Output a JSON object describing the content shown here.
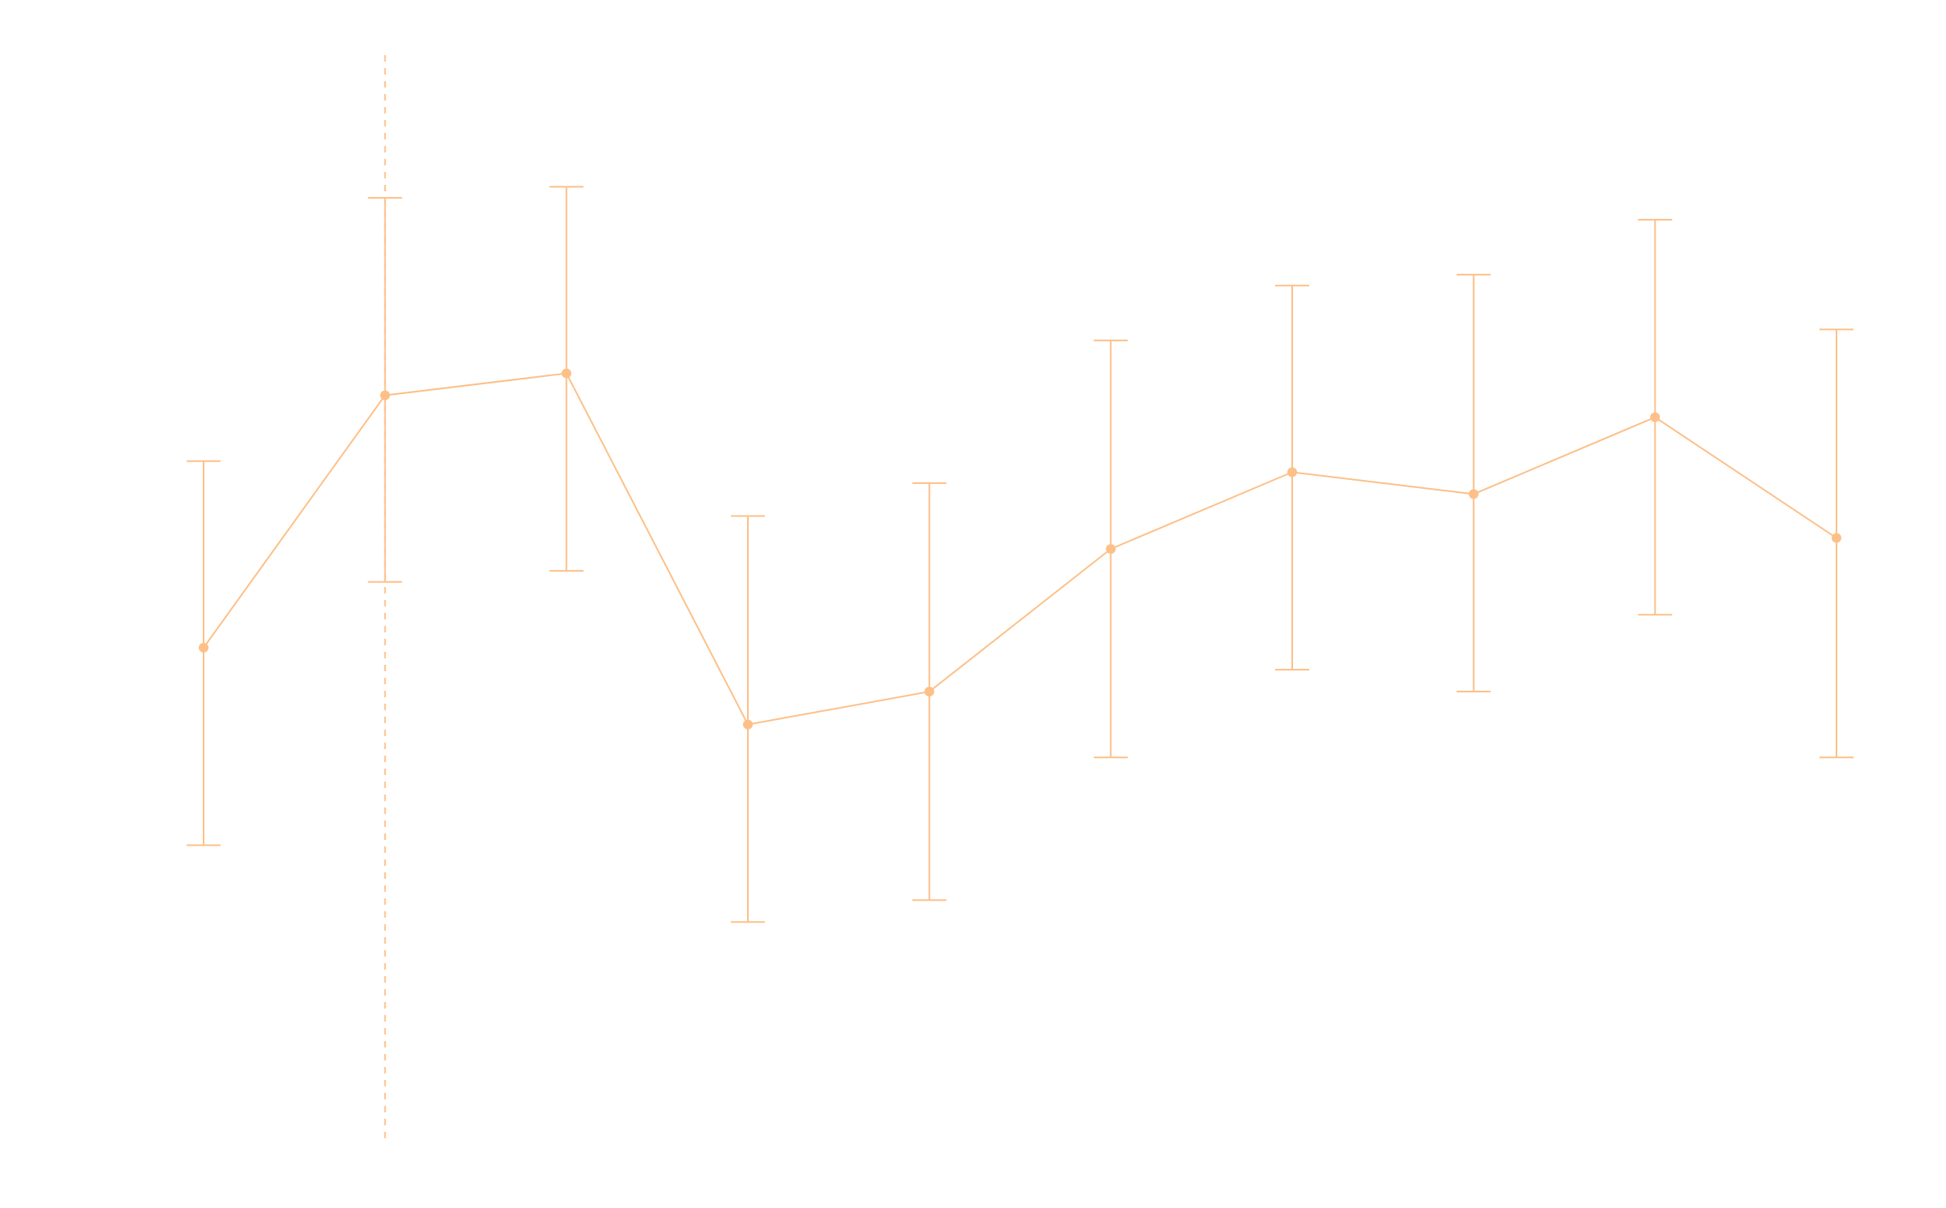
{
  "chart_data": {
    "type": "line",
    "x": [
      1,
      2,
      3,
      4,
      5,
      6,
      7,
      8,
      9,
      10
    ],
    "series": [
      {
        "values": [
          79.1,
          76.8,
          76.6,
          79.8,
          79.5,
          78.2,
          77.5,
          77.7,
          77.0,
          78.1
        ],
        "lower": [
          77.4,
          75.0,
          74.9,
          77.9,
          77.6,
          76.3,
          75.8,
          75.7,
          75.2,
          76.2
        ],
        "upper": [
          80.9,
          78.5,
          78.4,
          81.6,
          81.4,
          80.1,
          79.3,
          79.5,
          78.8,
          80.1
        ]
      }
    ],
    "reference_line": {
      "x": 2,
      "style": "dashed"
    },
    "ylim": [
      73.7,
      83.6
    ],
    "y_inverted": true,
    "axes_visible": false,
    "grid": false,
    "colors": {
      "series": "#fdc088"
    }
  }
}
